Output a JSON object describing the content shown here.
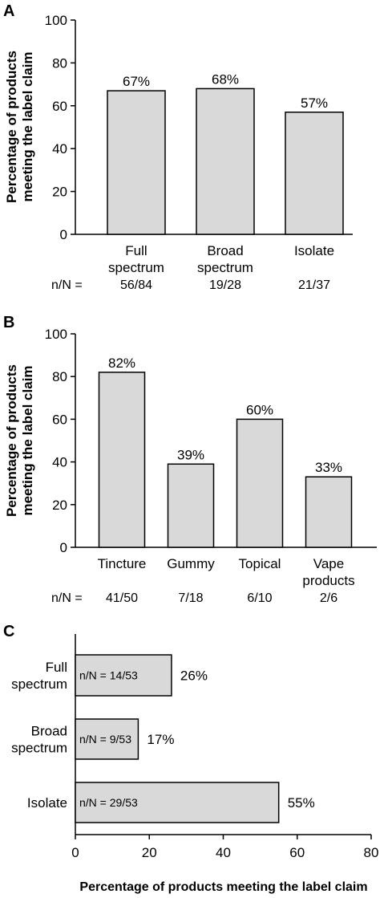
{
  "chart_data": [
    {
      "panel": "A",
      "type": "bar",
      "orientation": "vertical",
      "categories": [
        [
          "Full",
          "spectrum"
        ],
        [
          "Broad",
          "spectrum"
        ],
        [
          "Isolate"
        ]
      ],
      "values": [
        67,
        68,
        57
      ],
      "data_labels": [
        "67%",
        "68%",
        "57%"
      ],
      "ylabel": [
        "Percentage of products",
        "meeting the label claim"
      ],
      "ylim": [
        0,
        100
      ],
      "yticks": [
        0,
        20,
        40,
        60,
        80,
        100
      ],
      "n_prefix": "n/N =",
      "n_values": [
        "56/84",
        "19/28",
        "21/37"
      ],
      "bar_color": "#d9d9d9",
      "grid": false
    },
    {
      "panel": "B",
      "type": "bar",
      "orientation": "vertical",
      "categories": [
        [
          "Tincture"
        ],
        [
          "Gummy"
        ],
        [
          "Topical"
        ],
        [
          "Vape",
          "products"
        ]
      ],
      "values": [
        82,
        39,
        60,
        33
      ],
      "data_labels": [
        "82%",
        "39%",
        "60%",
        "33%"
      ],
      "ylabel": [
        "Percentage of products",
        "meeting the label claim"
      ],
      "ylim": [
        0,
        100
      ],
      "yticks": [
        0,
        20,
        40,
        60,
        80,
        100
      ],
      "n_prefix": "n/N =",
      "n_values": [
        "41/50",
        "7/18",
        "6/10",
        "2/6"
      ],
      "bar_color": "#d9d9d9",
      "grid": false
    },
    {
      "panel": "C",
      "type": "bar",
      "orientation": "horizontal",
      "categories": [
        [
          "Full",
          "spectrum"
        ],
        [
          "Broad",
          "spectrum"
        ],
        [
          "Isolate"
        ]
      ],
      "values": [
        26,
        17,
        55
      ],
      "data_labels": [
        "26%",
        "17%",
        "55%"
      ],
      "bar_texts": [
        "n/N = 14/53",
        "n/N = 9/53",
        "n/N = 29/53"
      ],
      "xlabel": "Percentage of products meeting the label claim",
      "xlim": [
        0,
        80
      ],
      "xticks": [
        0,
        20,
        40,
        60,
        80
      ],
      "bar_color": "#d9d9d9",
      "grid": false
    }
  ]
}
